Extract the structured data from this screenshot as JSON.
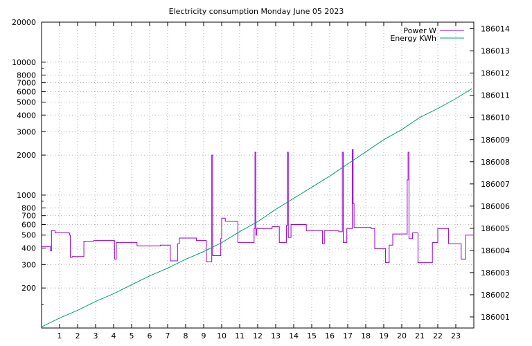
{
  "chart_data": {
    "type": "line",
    "title": "Electricity consumption Monday June 05 2023",
    "grid": true,
    "legend_position": "top-right",
    "x": {
      "range": [
        0,
        24
      ],
      "ticks": [
        1,
        2,
        3,
        4,
        5,
        6,
        7,
        8,
        9,
        10,
        11,
        12,
        13,
        14,
        15,
        16,
        17,
        18,
        19,
        20,
        21,
        22,
        23
      ],
      "tick_labels": [
        "1",
        "2",
        "3",
        "4",
        "5",
        "6",
        "7",
        "8",
        "9",
        "10",
        "11",
        "12",
        "13",
        "14",
        "15",
        "16",
        "17",
        "18",
        "19",
        "20",
        "21",
        "22",
        "23"
      ]
    },
    "y_left": {
      "scale": "log",
      "range": [
        100,
        20000
      ],
      "ticks": [
        200,
        300,
        400,
        500,
        600,
        700,
        800,
        1000,
        2000,
        3000,
        4000,
        5000,
        6000,
        7000,
        8000,
        10000,
        20000
      ],
      "tick_labels": [
        "200",
        "300",
        "400",
        "500",
        "600",
        "700",
        "800",
        "1000",
        "2000",
        "3000",
        "4000",
        "5000",
        "6000",
        "7000",
        "8000",
        "10000",
        "20000"
      ]
    },
    "y_right": {
      "scale": "linear",
      "range": [
        186000.5,
        186014.3
      ],
      "ticks": [
        186001,
        186002,
        186003,
        186004,
        186005,
        186006,
        186007,
        186008,
        186009,
        186010,
        186011,
        186012,
        186013,
        186014
      ],
      "tick_labels": [
        "186001",
        "186002",
        "186003",
        "186004",
        "186005",
        "186006",
        "186007",
        "186008",
        "186009",
        "186010",
        "186011",
        "186012",
        "186013",
        "186014"
      ]
    },
    "series": [
      {
        "name": "Power W",
        "axis": "left",
        "color": "#9400d3",
        "shape": "step",
        "points": [
          [
            0,
            410
          ],
          [
            0.5,
            380
          ],
          [
            0.55,
            540
          ],
          [
            0.75,
            520
          ],
          [
            1.55,
            500
          ],
          [
            1.6,
            340
          ],
          [
            1.7,
            345
          ],
          [
            2.35,
            450
          ],
          [
            2.9,
            455
          ],
          [
            4.05,
            330
          ],
          [
            4.15,
            440
          ],
          [
            5.3,
            415
          ],
          [
            6.6,
            420
          ],
          [
            7.15,
            320
          ],
          [
            7.55,
            430
          ],
          [
            7.65,
            475
          ],
          [
            8.6,
            455
          ],
          [
            9.15,
            315
          ],
          [
            9.45,
            2000
          ],
          [
            9.5,
            350
          ],
          [
            9.95,
            470
          ],
          [
            10.0,
            670
          ],
          [
            10.2,
            635
          ],
          [
            10.9,
            440
          ],
          [
            11.8,
            560
          ],
          [
            11.85,
            2100
          ],
          [
            11.9,
            500
          ],
          [
            11.95,
            560
          ],
          [
            12.8,
            580
          ],
          [
            13.2,
            440
          ],
          [
            13.6,
            590
          ],
          [
            13.65,
            2100
          ],
          [
            13.7,
            480
          ],
          [
            13.85,
            600
          ],
          [
            14.7,
            540
          ],
          [
            15.6,
            430
          ],
          [
            15.7,
            540
          ],
          [
            16.5,
            530
          ],
          [
            16.7,
            2100
          ],
          [
            16.75,
            440
          ],
          [
            16.95,
            560
          ],
          [
            17.25,
            2200
          ],
          [
            17.3,
            860
          ],
          [
            17.35,
            570
          ],
          [
            18.3,
            560
          ],
          [
            18.5,
            395
          ],
          [
            19.1,
            310
          ],
          [
            19.3,
            420
          ],
          [
            19.5,
            510
          ],
          [
            20.3,
            1300
          ],
          [
            20.35,
            2100
          ],
          [
            20.4,
            470
          ],
          [
            20.6,
            520
          ],
          [
            20.9,
            310
          ],
          [
            21.7,
            440
          ],
          [
            22.0,
            560
          ],
          [
            22.6,
            430
          ],
          [
            23.3,
            330
          ],
          [
            23.55,
            500
          ],
          [
            23.9,
            500
          ]
        ]
      },
      {
        "name": "Energy KWh",
        "axis": "right",
        "color": "#009e73",
        "shape": "line",
        "points": [
          [
            0,
            186000.55
          ],
          [
            1,
            186000.95
          ],
          [
            2,
            186001.3
          ],
          [
            3,
            186001.7
          ],
          [
            4,
            186002.05
          ],
          [
            5,
            186002.45
          ],
          [
            6,
            186002.85
          ],
          [
            7,
            186003.2
          ],
          [
            8,
            186003.6
          ],
          [
            9,
            186003.95
          ],
          [
            10,
            186004.35
          ],
          [
            11,
            186004.85
          ],
          [
            12,
            186005.3
          ],
          [
            13,
            186005.85
          ],
          [
            14,
            186006.35
          ],
          [
            15,
            186006.85
          ],
          [
            16,
            186007.35
          ],
          [
            17,
            186007.9
          ],
          [
            18,
            186008.45
          ],
          [
            19,
            186009.0
          ],
          [
            20,
            186009.45
          ],
          [
            21,
            186010.0
          ],
          [
            22,
            186010.4
          ],
          [
            23,
            186010.85
          ],
          [
            23.9,
            186011.3
          ]
        ]
      }
    ]
  }
}
